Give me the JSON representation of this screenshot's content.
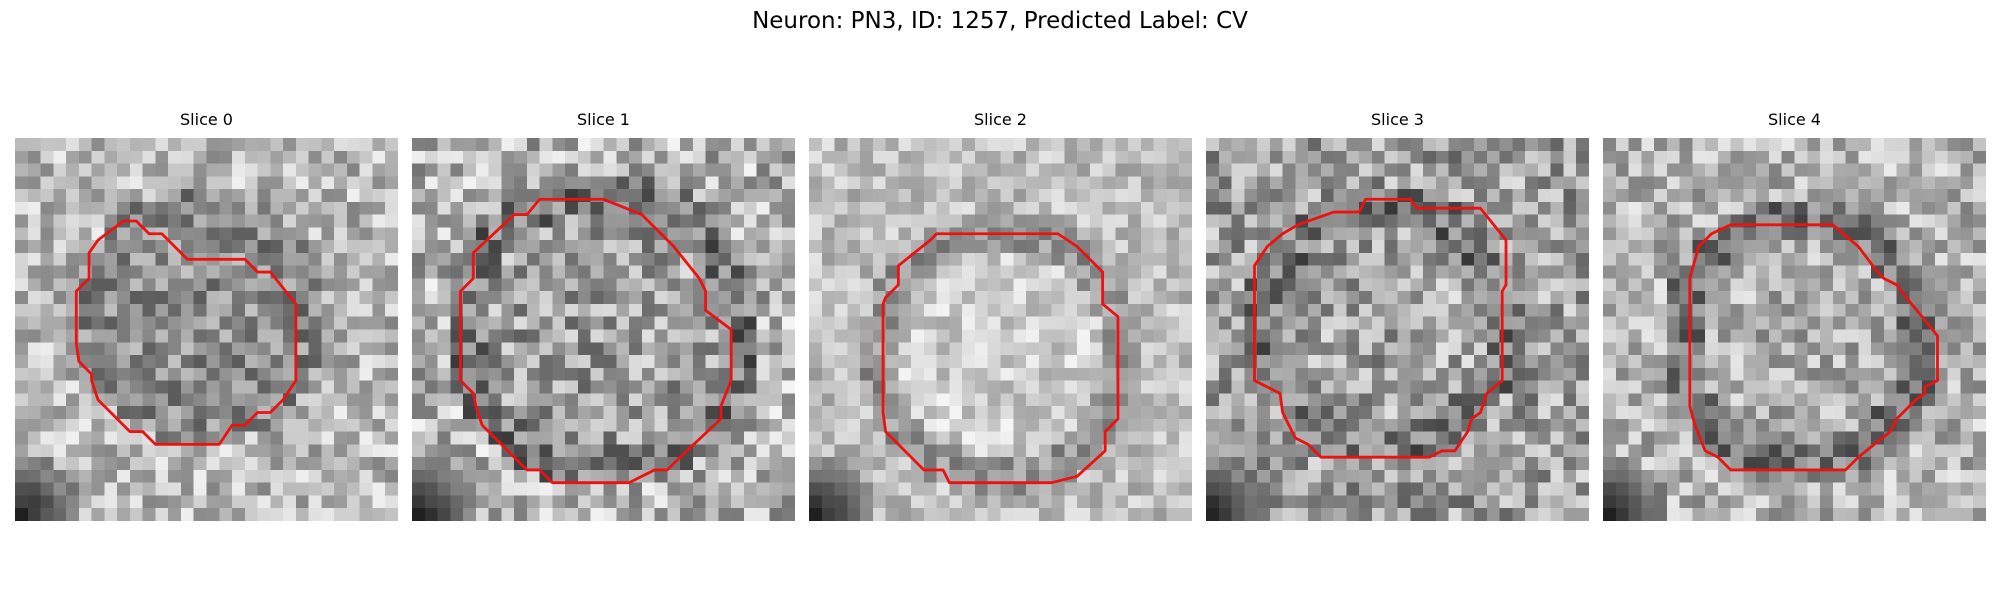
{
  "figure": {
    "title": "Neuron: PN3, ID: 1257, Predicted Label: CV"
  },
  "panels": [
    {
      "title": "Slice 0"
    },
    {
      "title": "Slice 1"
    },
    {
      "title": "Slice 2"
    },
    {
      "title": "Slice 3"
    },
    {
      "title": "Slice 4"
    }
  ],
  "colors": {
    "contour": "#ee1111",
    "background": "#ffffff"
  }
}
